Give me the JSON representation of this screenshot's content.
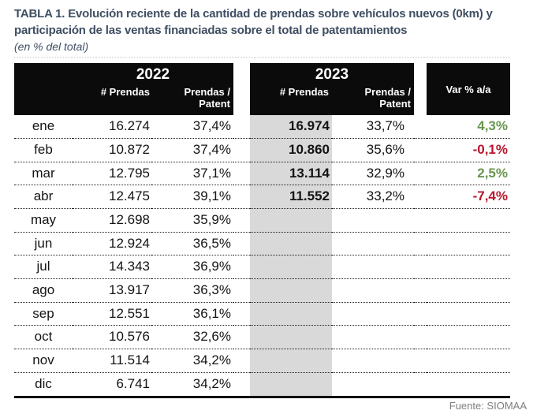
{
  "title": {
    "text": "TABLA 1. Evolución reciente de la cantidad de prendas sobre vehículos nuevos (0km) y participación de las ventas financiadas sobre el total de patentamientos",
    "subtitle": "(en % del total)"
  },
  "table": {
    "groups": [
      {
        "year": "2022",
        "col1": "# Prendas",
        "col2": "Prendas / Patent"
      },
      {
        "year": "2023",
        "col1": "# Prendas",
        "col2": "Prendas / Patent"
      }
    ],
    "var_header": "Var % a/a",
    "rows": [
      {
        "month": "ene",
        "p2022": "16.274",
        "pp2022": "37,4%",
        "p2023": "16.974",
        "pp2023": "33,7%",
        "var": "4,3%",
        "var_dir": "pos"
      },
      {
        "month": "feb",
        "p2022": "10.872",
        "pp2022": "37,4%",
        "p2023": "10.860",
        "pp2023": "35,6%",
        "var": "-0,1%",
        "var_dir": "neg"
      },
      {
        "month": "mar",
        "p2022": "12.795",
        "pp2022": "37,1%",
        "p2023": "13.114",
        "pp2023": "32,9%",
        "var": "2,5%",
        "var_dir": "pos"
      },
      {
        "month": "abr",
        "p2022": "12.475",
        "pp2022": "39,1%",
        "p2023": "11.552",
        "pp2023": "33,2%",
        "var": "-7,4%",
        "var_dir": "neg"
      },
      {
        "month": "may",
        "p2022": "12.698",
        "pp2022": "35,9%",
        "p2023": "",
        "pp2023": "",
        "var": "",
        "var_dir": ""
      },
      {
        "month": "jun",
        "p2022": "12.924",
        "pp2022": "36,5%",
        "p2023": "",
        "pp2023": "",
        "var": "",
        "var_dir": ""
      },
      {
        "month": "jul",
        "p2022": "14.343",
        "pp2022": "36,9%",
        "p2023": "",
        "pp2023": "",
        "var": "",
        "var_dir": ""
      },
      {
        "month": "ago",
        "p2022": "13.917",
        "pp2022": "36,3%",
        "p2023": "",
        "pp2023": "",
        "var": "",
        "var_dir": ""
      },
      {
        "month": "sep",
        "p2022": "12.551",
        "pp2022": "36,1%",
        "p2023": "",
        "pp2023": "",
        "var": "",
        "var_dir": ""
      },
      {
        "month": "oct",
        "p2022": "10.576",
        "pp2022": "32,6%",
        "p2023": "",
        "pp2023": "",
        "var": "",
        "var_dir": ""
      },
      {
        "month": "nov",
        "p2022": "11.514",
        "pp2022": "34,2%",
        "p2023": "",
        "pp2023": "",
        "var": "",
        "var_dir": ""
      },
      {
        "month": "dic",
        "p2022": "6.741",
        "pp2022": "34,2%",
        "p2023": "",
        "pp2023": "",
        "var": "",
        "var_dir": ""
      }
    ]
  },
  "footer": {
    "source": "Fuente: SIOMAA"
  },
  "colors": {
    "title": "#3f4e63",
    "header_bg": "#0b0b0b",
    "header_text": "#ffffff",
    "highlight_column": "#d9d9d9",
    "positive": "#69964e",
    "negative": "#b9152e",
    "source_text": "#7f7f7f"
  },
  "chart_data": {
    "type": "table",
    "title": "TABLA 1. Evolución reciente de la cantidad de prendas sobre vehículos nuevos (0km) y participación de las ventas financiadas sobre el total de patentamientos",
    "subtitle": "(en % del total)",
    "columns": [
      "mes",
      "2022 # Prendas",
      "2022 Prendas / Patent (%)",
      "2023 # Prendas",
      "2023 Prendas / Patent (%)",
      "Var % a/a"
    ],
    "rows": [
      {
        "mes": "ene",
        "prendas_2022": 16274,
        "prendas_patent_2022_pct": 37.4,
        "prendas_2023": 16974,
        "prendas_patent_2023_pct": 33.7,
        "var_aa_pct": 4.3
      },
      {
        "mes": "feb",
        "prendas_2022": 10872,
        "prendas_patent_2022_pct": 37.4,
        "prendas_2023": 10860,
        "prendas_patent_2023_pct": 35.6,
        "var_aa_pct": -0.1
      },
      {
        "mes": "mar",
        "prendas_2022": 12795,
        "prendas_patent_2022_pct": 37.1,
        "prendas_2023": 13114,
        "prendas_patent_2023_pct": 32.9,
        "var_aa_pct": 2.5
      },
      {
        "mes": "abr",
        "prendas_2022": 12475,
        "prendas_patent_2022_pct": 39.1,
        "prendas_2023": 11552,
        "prendas_patent_2023_pct": 33.2,
        "var_aa_pct": -7.4
      },
      {
        "mes": "may",
        "prendas_2022": 12698,
        "prendas_patent_2022_pct": 35.9,
        "prendas_2023": null,
        "prendas_patent_2023_pct": null,
        "var_aa_pct": null
      },
      {
        "mes": "jun",
        "prendas_2022": 12924,
        "prendas_patent_2022_pct": 36.5,
        "prendas_2023": null,
        "prendas_patent_2023_pct": null,
        "var_aa_pct": null
      },
      {
        "mes": "jul",
        "prendas_2022": 14343,
        "prendas_patent_2022_pct": 36.9,
        "prendas_2023": null,
        "prendas_patent_2023_pct": null,
        "var_aa_pct": null
      },
      {
        "mes": "ago",
        "prendas_2022": 13917,
        "prendas_patent_2022_pct": 36.3,
        "prendas_2023": null,
        "prendas_patent_2023_pct": null,
        "var_aa_pct": null
      },
      {
        "mes": "sep",
        "prendas_2022": 12551,
        "prendas_patent_2022_pct": 36.1,
        "prendas_2023": null,
        "prendas_patent_2023_pct": null,
        "var_aa_pct": null
      },
      {
        "mes": "oct",
        "prendas_2022": 10576,
        "prendas_patent_2022_pct": 32.6,
        "prendas_2023": null,
        "prendas_patent_2023_pct": null,
        "var_aa_pct": null
      },
      {
        "mes": "nov",
        "prendas_2022": 11514,
        "prendas_patent_2022_pct": 34.2,
        "prendas_2023": null,
        "prendas_patent_2023_pct": null,
        "var_aa_pct": null
      },
      {
        "mes": "dic",
        "prendas_2022": 6741,
        "prendas_patent_2022_pct": 34.2,
        "prendas_2023": null,
        "prendas_patent_2023_pct": null,
        "var_aa_pct": null
      }
    ],
    "source": "Fuente: SIOMAA",
    "layout": {
      "highlighted_column": "2023 # Prendas",
      "positive_color": "#69964e",
      "negative_color": "#b9152e"
    }
  }
}
